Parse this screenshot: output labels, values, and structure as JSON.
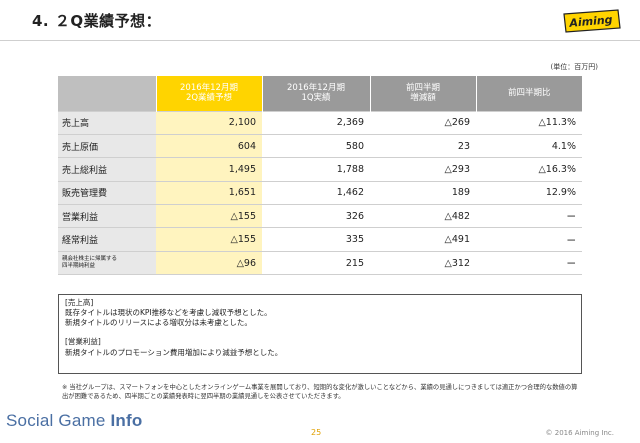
{
  "slide": {
    "title": "4. ２Q業績予想：",
    "logo_text": "Aiming",
    "unit": "(単位：百万円)"
  },
  "table": {
    "headers": [
      {
        "line1": "2016年12月期",
        "line2": "2Q業績予想"
      },
      {
        "line1": "2016年12月期",
        "line2": "1Q実績"
      },
      {
        "line1": "前四半期",
        "line2": "増減額"
      },
      {
        "line1": "前四半期比",
        "line2": ""
      }
    ],
    "rows": [
      {
        "label": "売上高",
        "forecast": "2,100",
        "actual": "2,369",
        "diff": "△269",
        "ratio": "△11.3%"
      },
      {
        "label": "売上原価",
        "forecast": "604",
        "actual": "580",
        "diff": "23",
        "ratio": "4.1%"
      },
      {
        "label": "売上総利益",
        "forecast": "1,495",
        "actual": "1,788",
        "diff": "△293",
        "ratio": "△16.3%"
      },
      {
        "label": "販売管理費",
        "forecast": "1,651",
        "actual": "1,462",
        "diff": "189",
        "ratio": "12.9%"
      },
      {
        "label": "営業利益",
        "forecast": "△155",
        "actual": "326",
        "diff": "△482",
        "ratio": "ー"
      },
      {
        "label": "経常利益",
        "forecast": "△155",
        "actual": "335",
        "diff": "△491",
        "ratio": "ー"
      },
      {
        "label_line1": "親会社株主に帰属する",
        "label_line2": "四半期純利益",
        "forecast": "△96",
        "actual": "215",
        "diff": "△312",
        "ratio": "ー"
      }
    ]
  },
  "notes": {
    "section1_heading": "[売上高]",
    "section1_line1": "既存タイトルは現状のKPI推移などを考慮し減収予想とした。",
    "section1_line2": "新規タイトルのリリースによる増収分は未考慮とした。",
    "section2_heading": "[営業利益]",
    "section2_line1": "新規タイトルのプロモーション費用増加により減益予想とした。"
  },
  "footnote": "※ 当社グループは、スマートフォンを中心としたオンラインゲーム事業を展開しており、短期的な変化が激しいことなどから、業績の見通しにつきましては適正かつ合理的な数値の算出が困難であるため、四半期ごとの業績発表時に翌四半期の業績見通しを公表させていただきます。",
  "footer": {
    "watermark_social": "Social Game ",
    "watermark_info": "Info",
    "page_number": "25",
    "copyright": "© 2016 Aiming Inc."
  },
  "colors": {
    "highlight": "#ffd400",
    "highlight_light": "#fff4bf",
    "header_gray": "#9a9a9a",
    "label_gray": "#e8e8e8"
  }
}
